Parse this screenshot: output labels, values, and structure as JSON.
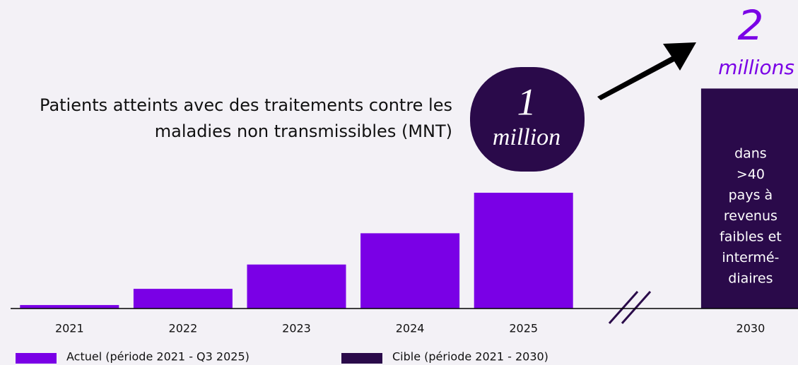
{
  "chart_data": {
    "type": "bar",
    "title": [
      "Patients atteints avec des traitements contre les",
      "maladies non transmissibles (MNT)"
    ],
    "categories": [
      "2021",
      "2022",
      "2023",
      "2024",
      "2025",
      null,
      "2030"
    ],
    "series": [
      {
        "name": "Actuel (période 2021 - Q3 2025)",
        "color": "#7a00e6",
        "values": [
          0.03,
          0.17,
          0.38,
          0.65,
          1.0,
          null,
          null
        ]
      },
      {
        "name": "Cible (période 2021 - 2030)",
        "color": "#2a0a4a",
        "values": [
          null,
          null,
          null,
          null,
          null,
          null,
          1.9
        ]
      }
    ],
    "ylim": [
      0,
      2
    ],
    "annotations": {
      "current": [
        "1",
        "million"
      ],
      "target": [
        "2",
        "millions"
      ],
      "target_note": [
        "dans",
        ">40",
        "pays à",
        "revenus",
        "faibles et",
        "intermé-",
        "diaires"
      ]
    }
  }
}
